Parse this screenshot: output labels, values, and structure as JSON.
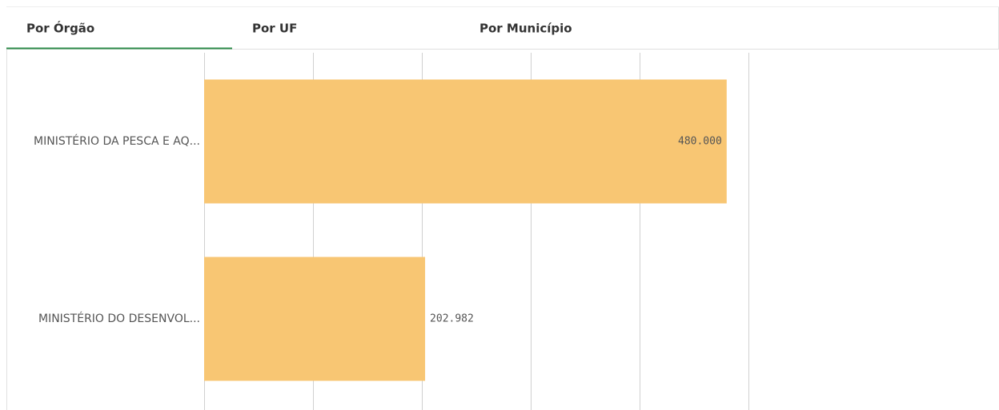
{
  "tabs": [
    "Por Órgão",
    "Por UF",
    "Por Município"
  ],
  "active_tab": 0,
  "chart_data": {
    "type": "bar",
    "orientation": "horizontal",
    "categories": [
      "MINISTÉRIO DA PESCA E AQ...",
      "MINISTÉRIO DO DESENVOL..."
    ],
    "values": [
      480000,
      202982
    ],
    "value_labels": [
      "480.000",
      "202.982"
    ],
    "color": "#f8c673",
    "xlim": [
      0,
      500000
    ],
    "xticks": [
      0,
      100000,
      200000,
      300000,
      400000,
      500000
    ],
    "grid": true
  }
}
